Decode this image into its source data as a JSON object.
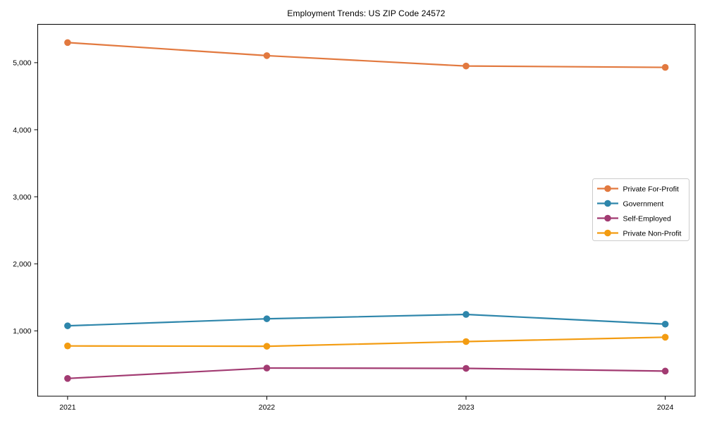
{
  "window": {
    "background": "#ffffff"
  },
  "chart_data": {
    "type": "line",
    "title": "Employment Trends: US ZIP Code 24572",
    "xlabel": "",
    "ylabel": "",
    "categories": [
      2021,
      2022,
      2023,
      2024
    ],
    "x_tick_labels": [
      "2021",
      "2022",
      "2023",
      "2024"
    ],
    "series": [
      {
        "name": "Private For-Profit",
        "color": "#E2793F",
        "values": [
          5300,
          5105,
          4950,
          4930
        ]
      },
      {
        "name": "Government",
        "color": "#2E86AB",
        "values": [
          1075,
          1180,
          1245,
          1100
        ]
      },
      {
        "name": "Self-Employed",
        "color": "#A23B72",
        "values": [
          290,
          445,
          440,
          400
        ]
      },
      {
        "name": "Private Non-Profit",
        "color": "#F39C12",
        "values": [
          775,
          770,
          840,
          905
        ]
      }
    ],
    "y_ticks": [
      {
        "value": 1000,
        "label": "1,000"
      },
      {
        "value": 2000,
        "label": "2,000"
      },
      {
        "value": 3000,
        "label": "3,000"
      },
      {
        "value": 4000,
        "label": "4,000"
      },
      {
        "value": 5000,
        "label": "5,000"
      }
    ],
    "xlim": [
      2020.85,
      2024.15
    ],
    "ylim": [
      25,
      5572
    ],
    "grid": false,
    "legend_position": "center-right",
    "marker": "circle",
    "axis_color": "#000000",
    "legend_border_color": "#cccccc",
    "legend_background": "#ffffff"
  }
}
